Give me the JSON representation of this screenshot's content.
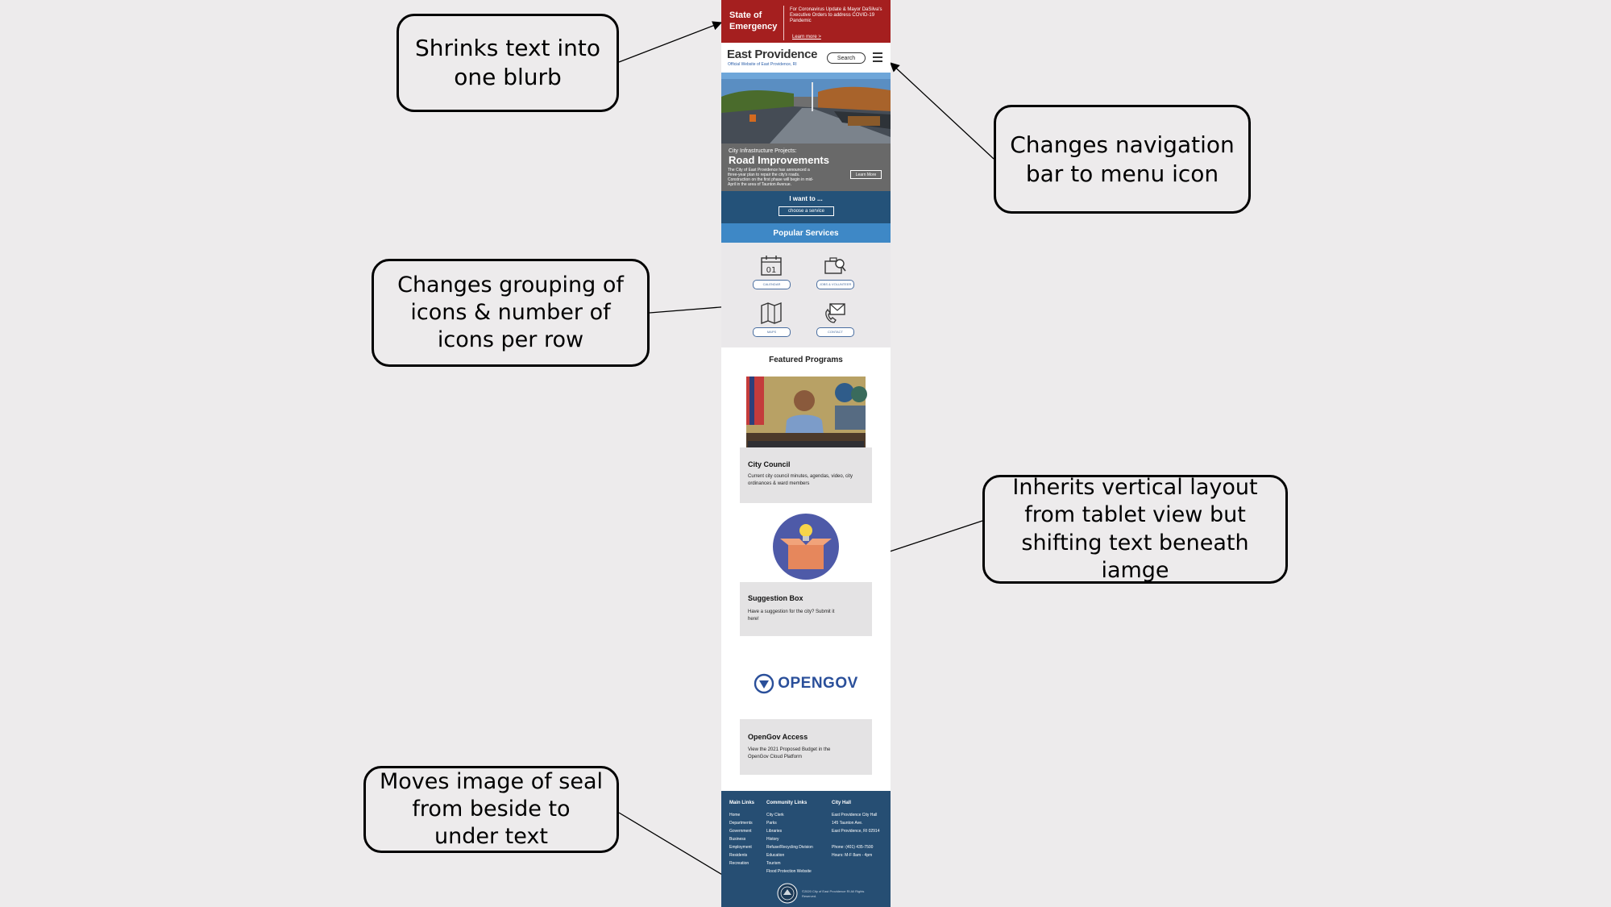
{
  "callouts": {
    "shrinks": "Shrinks text into one blurb",
    "menu": "Changes navigation bar to menu icon",
    "icons": "Changes grouping of icons & number of icons per row",
    "vertical": "Inherits vertical layout from tablet view but shifting text beneath iamge",
    "seal": "Moves image of seal from beside to under text"
  },
  "mobile": {
    "banner": {
      "title": "State of Emergency",
      "text": "For Coronavirus Update & Mayor DaSilva's Executive Orders to address COVID-19 Pandemic",
      "link": "Learn more >"
    },
    "header": {
      "logo": "East Providence",
      "subtitle": "Official Website of East Providence, RI",
      "search_label": "Search"
    },
    "hero": {
      "kicker": "City Infrastructure Projects:",
      "title": "Road Improvements",
      "body": "The City of East Providence has announced a three-year plan to repair the city's roads. Construction on the first phase will begin in mid-April in the area of Taunton Avenue.",
      "button": "Learn More"
    },
    "want": {
      "label": "I want to ...",
      "select": "choose a service"
    },
    "popular": {
      "title": "Popular Services",
      "items": [
        {
          "label": "CALENDAR",
          "icon": "calendar-icon"
        },
        {
          "label": "JOBS & VOLUNTEER",
          "icon": "jobs-icon"
        },
        {
          "label": "MAPS",
          "icon": "map-icon"
        },
        {
          "label": "CONTACT",
          "icon": "contact-icon"
        }
      ]
    },
    "programs": {
      "title": "Featured Programs",
      "cards": [
        {
          "title": "City Council",
          "text": "Current city council minutes, agendas, video, city ordinances & ward members"
        },
        {
          "title": "Suggestion Box",
          "text": "Have a suggestion for the city? Submit it here!"
        },
        {
          "title": "OpenGov Access",
          "text": "View the 2021 Proposed Budget in the OpenGov Cloud Platform",
          "logo": "OPENGOV"
        }
      ]
    },
    "footer": {
      "main_links": {
        "title": "Main Links",
        "items": [
          "Home",
          "Departments",
          "Government",
          "Business",
          "Employment",
          "Residents",
          "Recreation"
        ]
      },
      "community_links": {
        "title": "Community Links",
        "items": [
          "City Clerk",
          "Parks",
          "Libraries",
          "History",
          "Refuse/Recycling Division",
          "Education",
          "Tourism",
          "Flood Protection Website"
        ]
      },
      "city_hall": {
        "title": "City Hall",
        "lines": [
          "East Providence City Hall",
          "145 Taunton Ave.",
          "East Providence, RI 02914",
          "",
          "Phone: (401) 435-7500",
          "Hours: M-F 8am - 4pm"
        ]
      },
      "copyright": "©2020 City of East Providence RI All Rights Reserved."
    }
  }
}
